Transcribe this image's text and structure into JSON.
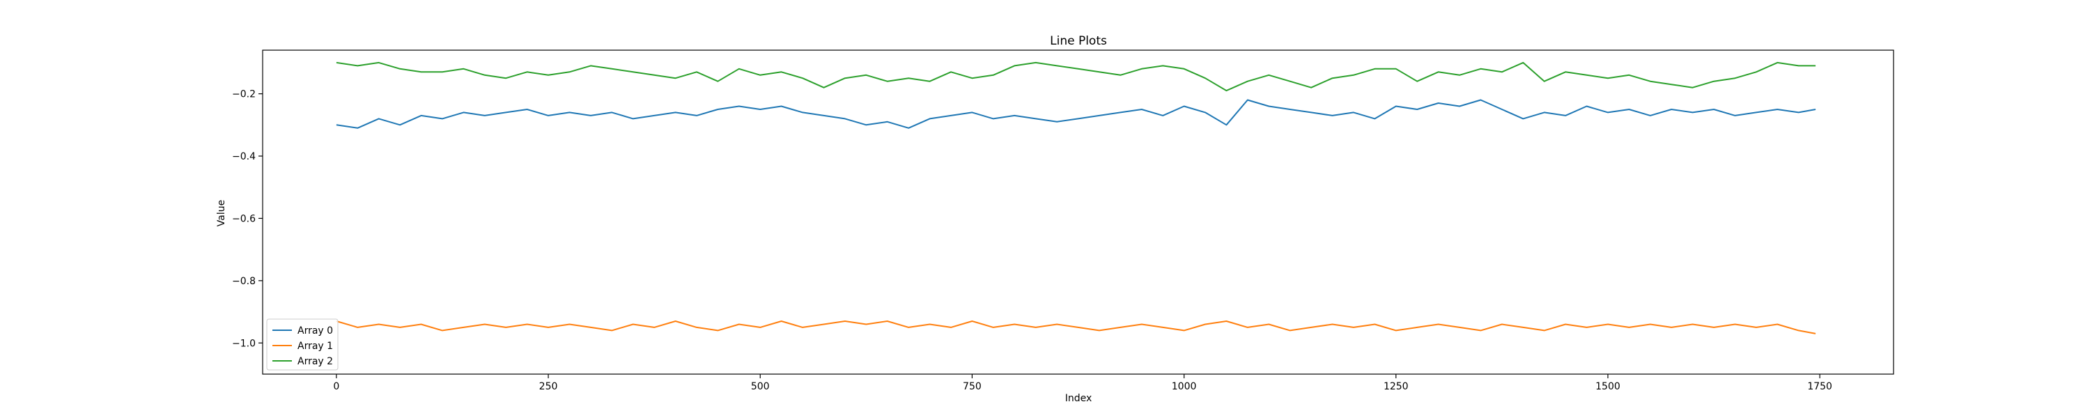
{
  "chart_data": {
    "type": "line",
    "title": "Line Plots",
    "xlabel": "Index",
    "ylabel": "Value",
    "xlim": [
      -87,
      1837
    ],
    "ylim": [
      -1.1,
      -0.06
    ],
    "xticks": [
      0,
      250,
      500,
      750,
      1000,
      1250,
      1500,
      1750
    ],
    "yticks": [
      -1.0,
      -0.8,
      -0.6,
      -0.4,
      -0.2
    ],
    "grid": false,
    "legend": "lower-left",
    "series": [
      {
        "name": "Array 0",
        "color": "#1f77b4",
        "x": [
          0,
          25,
          50,
          75,
          100,
          125,
          150,
          175,
          200,
          225,
          250,
          275,
          300,
          325,
          350,
          375,
          400,
          425,
          450,
          475,
          500,
          525,
          550,
          575,
          600,
          625,
          650,
          675,
          700,
          725,
          750,
          775,
          800,
          825,
          850,
          875,
          900,
          925,
          950,
          975,
          1000,
          1025,
          1050,
          1075,
          1100,
          1125,
          1150,
          1175,
          1200,
          1225,
          1250,
          1275,
          1300,
          1325,
          1350,
          1375,
          1400,
          1425,
          1450,
          1475,
          1500,
          1525,
          1550,
          1575,
          1600,
          1625,
          1650,
          1675,
          1700,
          1725,
          1745
        ],
        "y": [
          -0.3,
          -0.31,
          -0.28,
          -0.3,
          -0.27,
          -0.28,
          -0.26,
          -0.27,
          -0.26,
          -0.25,
          -0.27,
          -0.26,
          -0.27,
          -0.26,
          -0.28,
          -0.27,
          -0.26,
          -0.27,
          -0.25,
          -0.24,
          -0.25,
          -0.24,
          -0.26,
          -0.27,
          -0.28,
          -0.3,
          -0.29,
          -0.31,
          -0.28,
          -0.27,
          -0.26,
          -0.28,
          -0.27,
          -0.28,
          -0.29,
          -0.28,
          -0.27,
          -0.26,
          -0.25,
          -0.27,
          -0.24,
          -0.26,
          -0.3,
          -0.22,
          -0.24,
          -0.25,
          -0.26,
          -0.27,
          -0.26,
          -0.28,
          -0.24,
          -0.25,
          -0.23,
          -0.24,
          -0.22,
          -0.25,
          -0.28,
          -0.26,
          -0.27,
          -0.24,
          -0.26,
          -0.25,
          -0.27,
          -0.25,
          -0.26,
          -0.25,
          -0.27,
          -0.26,
          -0.25,
          -0.26,
          -0.25
        ]
      },
      {
        "name": "Array 1",
        "color": "#ff7f0e",
        "x": [
          0,
          25,
          50,
          75,
          100,
          125,
          150,
          175,
          200,
          225,
          250,
          275,
          300,
          325,
          350,
          375,
          400,
          425,
          450,
          475,
          500,
          525,
          550,
          575,
          600,
          625,
          650,
          675,
          700,
          725,
          750,
          775,
          800,
          825,
          850,
          875,
          900,
          925,
          950,
          975,
          1000,
          1025,
          1050,
          1075,
          1100,
          1125,
          1150,
          1175,
          1200,
          1225,
          1250,
          1275,
          1300,
          1325,
          1350,
          1375,
          1400,
          1425,
          1450,
          1475,
          1500,
          1525,
          1550,
          1575,
          1600,
          1625,
          1650,
          1675,
          1700,
          1725,
          1745
        ],
        "y": [
          -0.93,
          -0.95,
          -0.94,
          -0.95,
          -0.94,
          -0.96,
          -0.95,
          -0.94,
          -0.95,
          -0.94,
          -0.95,
          -0.94,
          -0.95,
          -0.96,
          -0.94,
          -0.95,
          -0.93,
          -0.95,
          -0.96,
          -0.94,
          -0.95,
          -0.93,
          -0.95,
          -0.94,
          -0.93,
          -0.94,
          -0.93,
          -0.95,
          -0.94,
          -0.95,
          -0.93,
          -0.95,
          -0.94,
          -0.95,
          -0.94,
          -0.95,
          -0.96,
          -0.95,
          -0.94,
          -0.95,
          -0.96,
          -0.94,
          -0.93,
          -0.95,
          -0.94,
          -0.96,
          -0.95,
          -0.94,
          -0.95,
          -0.94,
          -0.96,
          -0.95,
          -0.94,
          -0.95,
          -0.96,
          -0.94,
          -0.95,
          -0.96,
          -0.94,
          -0.95,
          -0.94,
          -0.95,
          -0.94,
          -0.95,
          -0.94,
          -0.95,
          -0.94,
          -0.95,
          -0.94,
          -0.96,
          -0.97
        ]
      },
      {
        "name": "Array 2",
        "color": "#2ca02c",
        "x": [
          0,
          25,
          50,
          75,
          100,
          125,
          150,
          175,
          200,
          225,
          250,
          275,
          300,
          325,
          350,
          375,
          400,
          425,
          450,
          475,
          500,
          525,
          550,
          575,
          600,
          625,
          650,
          675,
          700,
          725,
          750,
          775,
          800,
          825,
          850,
          875,
          900,
          925,
          950,
          975,
          1000,
          1025,
          1050,
          1075,
          1100,
          1125,
          1150,
          1175,
          1200,
          1225,
          1250,
          1275,
          1300,
          1325,
          1350,
          1375,
          1400,
          1425,
          1450,
          1475,
          1500,
          1525,
          1550,
          1575,
          1600,
          1625,
          1650,
          1675,
          1700,
          1725,
          1745
        ],
        "y": [
          -0.1,
          -0.11,
          -0.1,
          -0.12,
          -0.13,
          -0.13,
          -0.12,
          -0.14,
          -0.15,
          -0.13,
          -0.14,
          -0.13,
          -0.11,
          -0.12,
          -0.13,
          -0.14,
          -0.15,
          -0.13,
          -0.16,
          -0.12,
          -0.14,
          -0.13,
          -0.15,
          -0.18,
          -0.15,
          -0.14,
          -0.16,
          -0.15,
          -0.16,
          -0.13,
          -0.15,
          -0.14,
          -0.11,
          -0.1,
          -0.11,
          -0.12,
          -0.13,
          -0.14,
          -0.12,
          -0.11,
          -0.12,
          -0.15,
          -0.19,
          -0.16,
          -0.14,
          -0.16,
          -0.18,
          -0.15,
          -0.14,
          -0.12,
          -0.12,
          -0.16,
          -0.13,
          -0.14,
          -0.12,
          -0.13,
          -0.1,
          -0.16,
          -0.13,
          -0.14,
          -0.15,
          -0.14,
          -0.16,
          -0.17,
          -0.18,
          -0.16,
          -0.15,
          -0.13,
          -0.1,
          -0.11,
          -0.11
        ]
      }
    ]
  }
}
